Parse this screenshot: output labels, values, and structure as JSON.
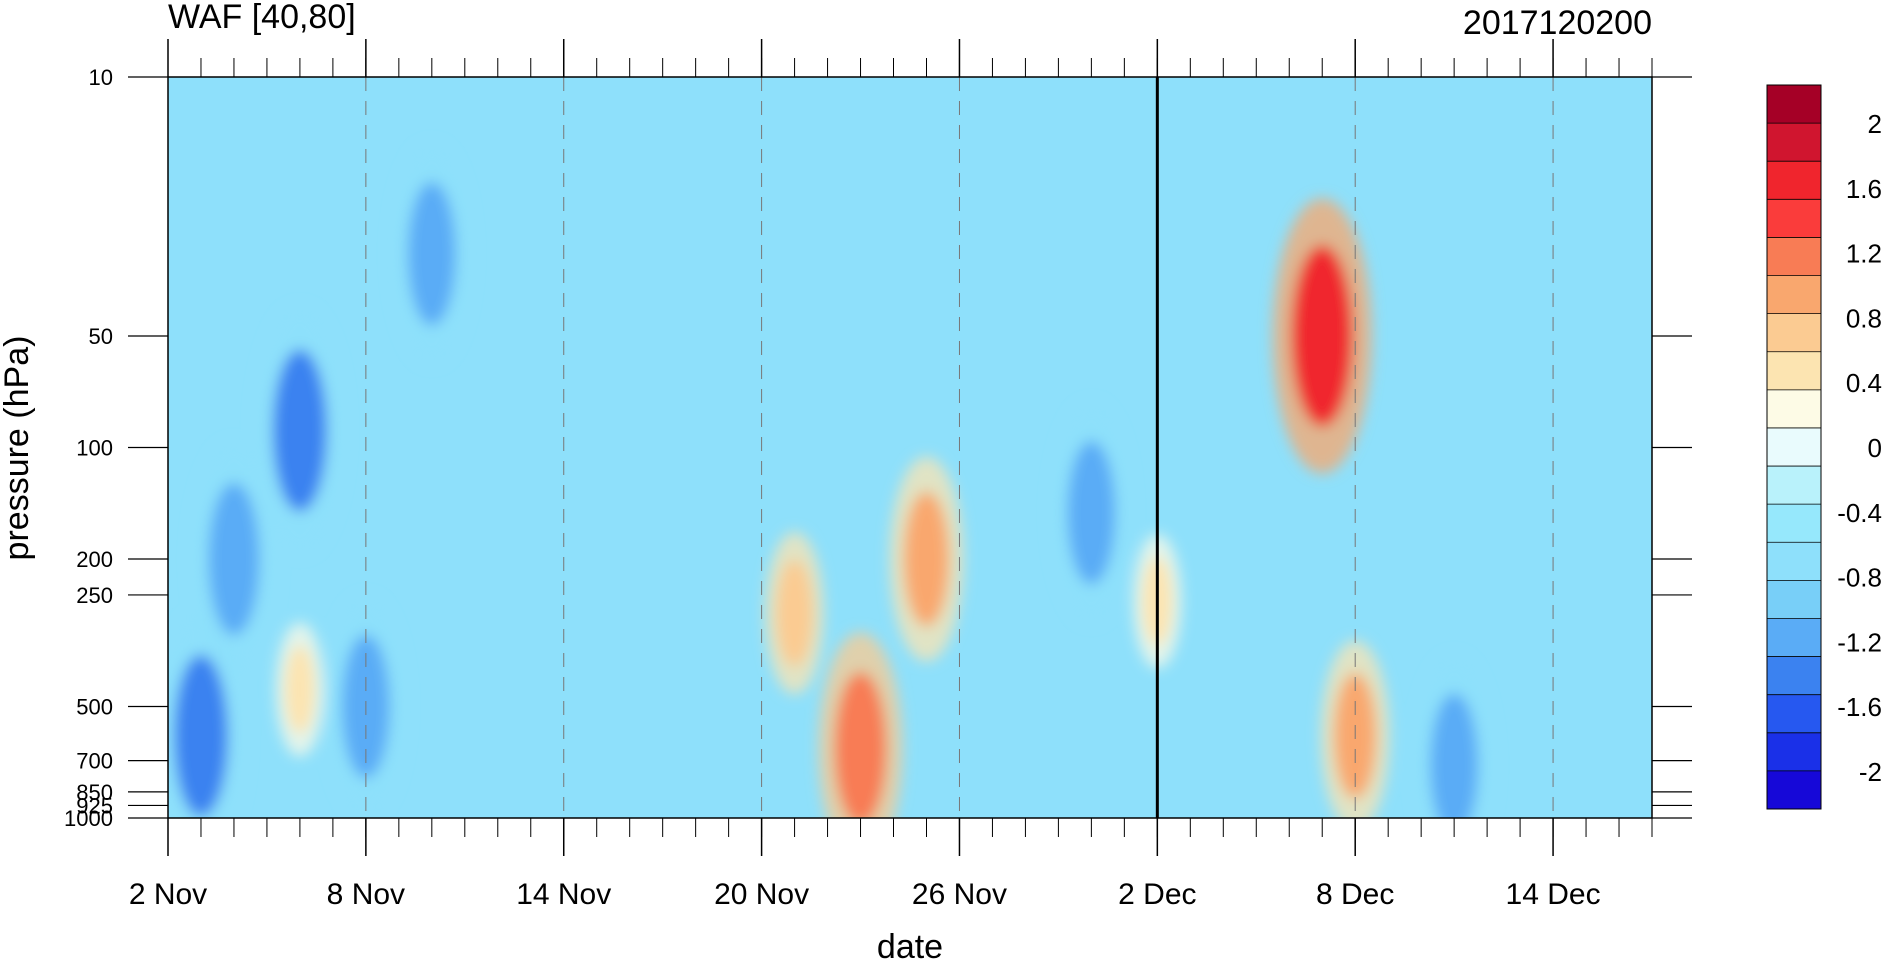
{
  "chart_data": {
    "type": "heatmap",
    "title_left": "WAF [40,80]",
    "title_right": "2017120200",
    "xlabel": "date",
    "ylabel": "pressure (hPa)",
    "x_tick_labels": [
      "2 Nov",
      "8 Nov",
      "14 Nov",
      "20 Nov",
      "26 Nov",
      "2 Dec",
      "8 Dec",
      "14 Dec"
    ],
    "x_range": [
      "2 Nov",
      "17 Dec"
    ],
    "forecast_start": "2 Dec",
    "y_tick_labels": [
      "10",
      "50",
      "100",
      "200",
      "250",
      "500",
      "700",
      "850",
      "925",
      "1000"
    ],
    "y_levels": [
      10,
      50,
      100,
      200,
      250,
      500,
      700,
      850,
      925,
      1000
    ],
    "y_scale": "log",
    "colorbar": {
      "labels": [
        "2",
        "1.6",
        "1.2",
        "0.8",
        "0.4",
        "0",
        "-0.4",
        "-0.8",
        "-1.2",
        "-1.6",
        "-2"
      ],
      "label_values": [
        2,
        1.6,
        1.2,
        0.8,
        0.4,
        0,
        -0.4,
        -0.8,
        -1.2,
        -1.6,
        -2
      ],
      "colors": [
        "#a50026",
        "#d0152f",
        "#f0252d",
        "#fa3c3b",
        "#f87c55",
        "#f9a76e",
        "#fbcb92",
        "#fce4b1",
        "#fdfbe6",
        "#e9fbfd",
        "#b9f2fb",
        "#96e8fc",
        "#8ee0fb",
        "#78cff8",
        "#5aacf6",
        "#3b82f0",
        "#2658f0",
        "#1a30e8",
        "#1608d8"
      ]
    },
    "anomaly_cells": [
      {
        "date": "3 Nov",
        "p": 600,
        "v": -1.3
      },
      {
        "date": "4 Nov",
        "p": 200,
        "v": -1.2
      },
      {
        "date": "6 Nov",
        "p": 90,
        "v": -1.3
      },
      {
        "date": "6 Nov",
        "p": 450,
        "v": 0.5
      },
      {
        "date": "8 Nov",
        "p": 500,
        "v": -1.1
      },
      {
        "date": "10 Nov",
        "p": 30,
        "v": -1.1
      },
      {
        "date": "21 Nov",
        "p": 280,
        "v": 0.7
      },
      {
        "date": "23 Nov",
        "p": 650,
        "v": 1.2
      },
      {
        "date": "25 Nov",
        "p": 200,
        "v": 1.0
      },
      {
        "date": "30 Nov",
        "p": 150,
        "v": -1.1
      },
      {
        "date": "2 Dec",
        "p": 260,
        "v": 0.5
      },
      {
        "date": "7 Dec",
        "p": 50,
        "v": 1.5
      },
      {
        "date": "8 Dec",
        "p": 600,
        "v": 0.9
      },
      {
        "date": "11 Dec",
        "p": 720,
        "v": -1.1
      }
    ]
  }
}
